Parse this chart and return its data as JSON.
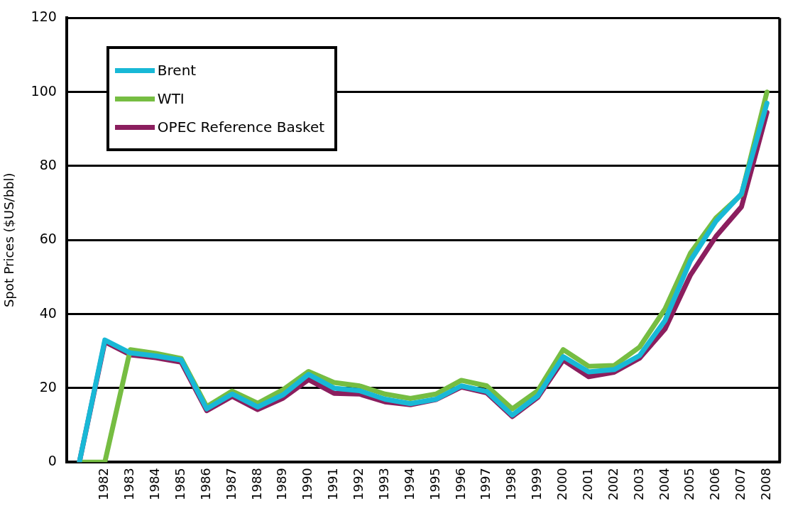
{
  "chart_data": {
    "type": "line",
    "ylabel": "Spot Prices ($US/bbl)",
    "categories": [
      null,
      "1982",
      "1983",
      "1984",
      "1985",
      "1986",
      "1987",
      "1988",
      "1989",
      "1990",
      "1991",
      "1992",
      "1993",
      "1994",
      "1995",
      "1996",
      "1997",
      "1998",
      "1999",
      "2000",
      "2001",
      "2002",
      "2003",
      "2004",
      "2005",
      "2006",
      "2007",
      "2008"
    ],
    "series": [
      {
        "name": "Brent",
        "color": "#18b8d6",
        "values": [
          0,
          33,
          29.5,
          28.7,
          27.6,
          14.4,
          18.4,
          14.9,
          18.2,
          23.7,
          20,
          19.3,
          17,
          15.8,
          17,
          20.6,
          19.1,
          12.7,
          17.9,
          28.5,
          24.4,
          25,
          28.8,
          38.3,
          54.5,
          65.1,
          72.5,
          97
        ]
      },
      {
        "name": "WTI",
        "color": "#76bd42",
        "values": [
          0,
          0,
          30.4,
          29.4,
          28,
          15,
          19.2,
          15.9,
          19.6,
          24.5,
          21.5,
          20.6,
          18.4,
          17.2,
          18.4,
          22.1,
          20.6,
          14.4,
          19.3,
          30.4,
          25.9,
          26.1,
          31.1,
          41.4,
          56.5,
          66,
          72.3,
          100
        ]
      },
      {
        "name": "OPEC Reference Basket",
        "color": "#8b1e5e",
        "values": [
          0,
          32.5,
          29,
          28.2,
          27,
          13.9,
          17.8,
          14.2,
          17.3,
          22.3,
          18.6,
          18.4,
          16.3,
          15.5,
          16.9,
          20.3,
          18.7,
          12.3,
          17.5,
          27.6,
          23.1,
          24.3,
          28.1,
          36,
          50.6,
          61,
          69,
          94.5
        ]
      }
    ],
    "ylim": [
      0,
      120
    ],
    "yticks": [
      0,
      20,
      40,
      60,
      80,
      100,
      120
    ],
    "grid": "y",
    "legend": "top left",
    "marker": "none",
    "line_style": "solid"
  }
}
